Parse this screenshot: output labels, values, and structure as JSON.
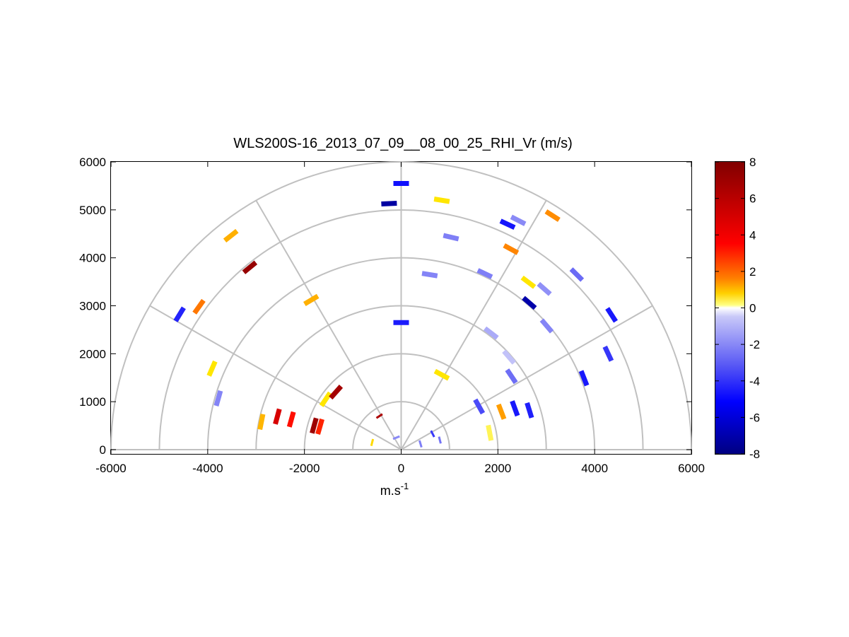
{
  "chart_data": {
    "type": "scatter",
    "subtype": "polar-rhi",
    "title": "WLS200S-16_2013_07_09__08_00_25_RHI_Vr (m/s)",
    "xlabel": "m.s",
    "xlabel_sup": "-1",
    "xlim": [
      -6000,
      6000
    ],
    "ylim": [
      0,
      6000
    ],
    "x_ticks": [
      "-6000",
      "-4000",
      "-2000",
      "0",
      "2000",
      "4000",
      "6000"
    ],
    "y_ticks": [
      "0",
      "1000",
      "2000",
      "3000",
      "4000",
      "5000",
      "6000"
    ],
    "polar_grid": {
      "ring_ranges": [
        1000,
        2000,
        3000,
        4000,
        5000,
        6000
      ],
      "spoke_angles_deg": [
        0,
        30,
        60,
        90,
        120,
        150,
        180
      ]
    },
    "colorbar": {
      "range": [
        -8,
        8
      ],
      "ticks": [
        "8",
        "6",
        "4",
        "2",
        "0",
        "-2",
        "-4",
        "-6",
        "-8"
      ]
    },
    "series": [
      {
        "points": [
          {
            "x": 0,
            "y": 5550,
            "v": -5.5
          },
          {
            "x": -250,
            "y": 5130,
            "v": -7.6
          },
          {
            "x": 840,
            "y": 5200,
            "v": 1.0
          },
          {
            "x": 2420,
            "y": 4780,
            "v": -1.5
          },
          {
            "x": 2200,
            "y": 4700,
            "v": -5.2
          },
          {
            "x": 3130,
            "y": 4880,
            "v": 2.5
          },
          {
            "x": -3520,
            "y": 4460,
            "v": 1.9
          },
          {
            "x": -3130,
            "y": 3800,
            "v": 7.4
          },
          {
            "x": 1030,
            "y": 4430,
            "v": -1.7
          },
          {
            "x": 2270,
            "y": 4180,
            "v": 2.6
          },
          {
            "x": 3630,
            "y": 3650,
            "v": -2.1
          },
          {
            "x": 1730,
            "y": 3670,
            "v": -1.7
          },
          {
            "x": 590,
            "y": 3650,
            "v": -1.6
          },
          {
            "x": 2630,
            "y": 3490,
            "v": 1.0
          },
          {
            "x": 2960,
            "y": 3350,
            "v": -1.4
          },
          {
            "x": 2650,
            "y": 3060,
            "v": -7.5
          },
          {
            "x": -4580,
            "y": 2820,
            "v": -4.3
          },
          {
            "x": -4180,
            "y": 2980,
            "v": 2.8
          },
          {
            "x": -1860,
            "y": 3120,
            "v": 1.9
          },
          {
            "x": 4350,
            "y": 2810,
            "v": -5.0
          },
          {
            "x": 3010,
            "y": 2580,
            "v": -1.6
          },
          {
            "x": 1860,
            "y": 2430,
            "v": -0.9
          },
          {
            "x": 0,
            "y": 2650,
            "v": -4.8
          },
          {
            "x": 4280,
            "y": 2000,
            "v": -3.6
          },
          {
            "x": 2230,
            "y": 1930,
            "v": -0.5
          },
          {
            "x": 2280,
            "y": 1530,
            "v": -2.0
          },
          {
            "x": 3780,
            "y": 1490,
            "v": -5.0
          },
          {
            "x": -3910,
            "y": 1690,
            "v": 1.0
          },
          {
            "x": -3780,
            "y": 1070,
            "v": -1.6
          },
          {
            "x": -2560,
            "y": 690,
            "v": 5.6
          },
          {
            "x": -2270,
            "y": 630,
            "v": 4.3
          },
          {
            "x": -2890,
            "y": 580,
            "v": 1.8
          },
          {
            "x": 2650,
            "y": 820,
            "v": -4.5
          },
          {
            "x": 2350,
            "y": 860,
            "v": -5.0
          },
          {
            "x": 2070,
            "y": 790,
            "v": 2.2
          },
          {
            "x": 1610,
            "y": 900,
            "v": -3.0
          },
          {
            "x": 840,
            "y": 1560,
            "v": 1.0
          },
          {
            "x": -1560,
            "y": 1050,
            "v": 1.0
          },
          {
            "x": -1350,
            "y": 1200,
            "v": 7.0
          },
          {
            "x": -1800,
            "y": 500,
            "v": 7.2
          },
          {
            "x": -1680,
            "y": 480,
            "v": 4.0
          },
          {
            "x": -450,
            "y": 700,
            "v": 6.8
          },
          {
            "x": 400,
            "y": 120,
            "v": -1.7
          },
          {
            "x": -100,
            "y": 250,
            "v": -1.5
          },
          {
            "x": 800,
            "y": 200,
            "v": -1.9
          },
          {
            "x": -600,
            "y": 150,
            "v": 1.2
          },
          {
            "x": 650,
            "y": 330,
            "v": -3.5
          },
          {
            "x": 1830,
            "y": 350,
            "v": 0.6
          }
        ]
      }
    ]
  }
}
